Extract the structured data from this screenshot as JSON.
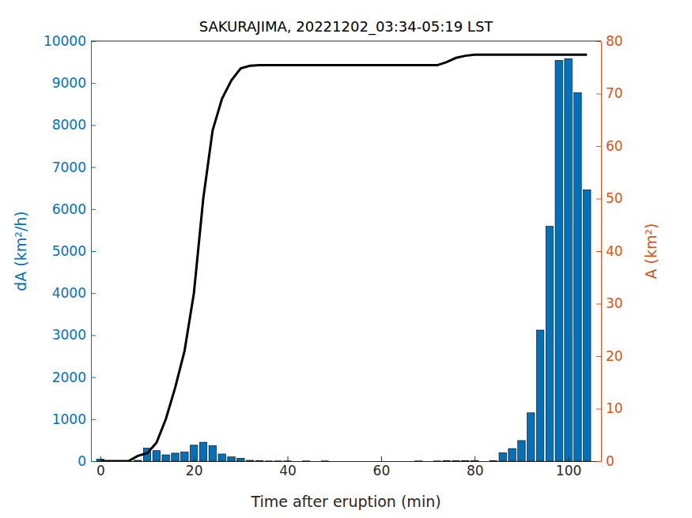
{
  "chart_data": {
    "type": "bar",
    "title": "SAKURAJIMA, 20221202_03:34-05:19 LST",
    "xlabel": "Time after eruption (min)",
    "ylabel": "dA (km²/h)",
    "y2label": "A (km²)",
    "x": [
      0,
      2,
      4,
      6,
      8,
      10,
      12,
      14,
      16,
      18,
      20,
      22,
      24,
      26,
      28,
      30,
      32,
      34,
      36,
      38,
      40,
      42,
      44,
      46,
      48,
      50,
      52,
      54,
      56,
      58,
      60,
      62,
      64,
      66,
      68,
      70,
      72,
      74,
      76,
      78,
      80,
      82,
      84,
      86,
      88,
      90,
      92,
      94,
      96,
      98,
      100,
      102,
      104
    ],
    "series": [
      {
        "type": "bar",
        "color": "#0072bd",
        "values": [
          50,
          0,
          0,
          0,
          20,
          310,
          250,
          150,
          190,
          220,
          380,
          450,
          370,
          170,
          100,
          70,
          20,
          10,
          5,
          5,
          5,
          0,
          5,
          0,
          5,
          0,
          0,
          0,
          0,
          0,
          0,
          0,
          0,
          0,
          5,
          0,
          5,
          10,
          10,
          10,
          10,
          0,
          10,
          200,
          300,
          490,
          1150,
          3120,
          5590,
          9540,
          9580,
          8770,
          6460
        ]
      },
      {
        "type": "line",
        "axis": "y2",
        "color": "#000000",
        "values": [
          0,
          0,
          0,
          0,
          1,
          1.5,
          3.5,
          8,
          14,
          21,
          32,
          50,
          63,
          69,
          72.5,
          74.8,
          75.3,
          75.4,
          75.4,
          75.4,
          75.4,
          75.4,
          75.4,
          75.4,
          75.4,
          75.4,
          75.4,
          75.4,
          75.4,
          75.4,
          75.4,
          75.4,
          75.4,
          75.4,
          75.4,
          75.4,
          75.4,
          76,
          76.8,
          77.2,
          77.4,
          77.4,
          77.4,
          77.4,
          77.4,
          77.4,
          77.4,
          77.4,
          77.4,
          77.4,
          77.4,
          77.4,
          77.4
        ]
      }
    ],
    "xlim": [
      -2,
      107
    ],
    "xticks": [
      0,
      20,
      40,
      60,
      80,
      100
    ],
    "ylim": [
      0,
      10000
    ],
    "yticks": [
      0,
      1000,
      2000,
      3000,
      4000,
      5000,
      6000,
      7000,
      8000,
      9000,
      10000
    ],
    "y2lim": [
      0,
      80
    ],
    "y2ticks": [
      0,
      10,
      20,
      30,
      40,
      50,
      60,
      70,
      80
    ]
  }
}
